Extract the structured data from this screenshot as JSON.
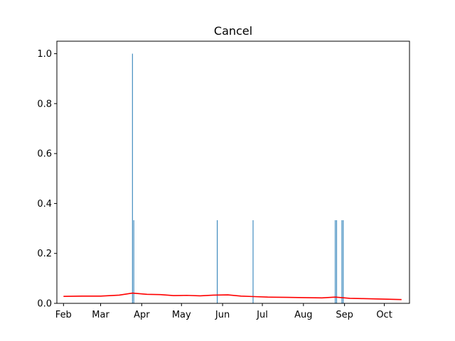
{
  "chart_data": {
    "type": "bar",
    "title": "Cancel",
    "xlabel": "",
    "ylabel": "",
    "ylim": [
      0,
      1.05
    ],
    "xlim": [
      "2023-01-27",
      "2023-10-20"
    ],
    "grid": false,
    "colors": {
      "bars": "#1f77b4",
      "line": "#ff0000",
      "axes": "#000000",
      "background": "#ffffff"
    },
    "x_ticks": [
      {
        "date": "2023-02-01",
        "label": "Feb"
      },
      {
        "date": "2023-03-01",
        "label": "Mar"
      },
      {
        "date": "2023-04-01",
        "label": "Apr"
      },
      {
        "date": "2023-05-01",
        "label": "May"
      },
      {
        "date": "2023-06-01",
        "label": "Jun"
      },
      {
        "date": "2023-07-01",
        "label": "Jul"
      },
      {
        "date": "2023-08-01",
        "label": "Aug"
      },
      {
        "date": "2023-09-01",
        "label": "Sep"
      },
      {
        "date": "2023-10-01",
        "label": "Oct"
      }
    ],
    "y_ticks": [
      {
        "value": 0.0,
        "label": "0.0"
      },
      {
        "value": 0.2,
        "label": "0.2"
      },
      {
        "value": 0.4,
        "label": "0.4"
      },
      {
        "value": 0.6,
        "label": "0.6"
      },
      {
        "value": 0.8,
        "label": "0.8"
      },
      {
        "value": 1.0,
        "label": "1.0"
      }
    ],
    "series": [
      {
        "type": "bar",
        "x": [
          "2023-03-25",
          "2023-03-26",
          "2023-05-28",
          "2023-06-24",
          "2023-08-25",
          "2023-08-26",
          "2023-08-30",
          "2023-08-31"
        ],
        "values": [
          1.0,
          0.333,
          0.333,
          0.333,
          0.333,
          0.333,
          0.333,
          0.333
        ]
      },
      {
        "type": "line",
        "x": [
          "2023-02-01",
          "2023-02-15",
          "2023-03-01",
          "2023-03-15",
          "2023-03-25",
          "2023-04-05",
          "2023-04-15",
          "2023-04-25",
          "2023-05-05",
          "2023-05-15",
          "2023-05-25",
          "2023-06-05",
          "2023-06-15",
          "2023-06-25",
          "2023-07-05",
          "2023-07-20",
          "2023-08-01",
          "2023-08-15",
          "2023-08-25",
          "2023-09-05",
          "2023-09-15",
          "2023-10-01",
          "2023-10-14"
        ],
        "values": [
          0.028,
          0.029,
          0.029,
          0.033,
          0.041,
          0.036,
          0.035,
          0.031,
          0.032,
          0.03,
          0.033,
          0.034,
          0.029,
          0.027,
          0.025,
          0.024,
          0.023,
          0.022,
          0.025,
          0.02,
          0.019,
          0.017,
          0.015
        ]
      }
    ]
  }
}
